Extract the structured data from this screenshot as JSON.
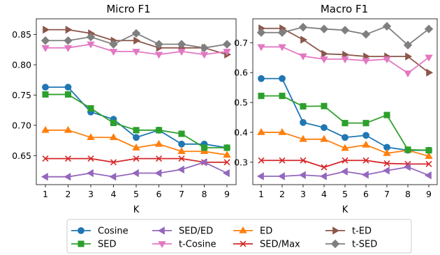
{
  "colors": {
    "Cosine": "#1f77b4",
    "ED": "#ff7f0e",
    "SED": "#2ca02c",
    "SED/Max": "#d62728",
    "SED/ED": "#9467bd",
    "t-ED": "#8c564b",
    "t-Cosine": "#e377c2",
    "t-SED": "#7f7f7f"
  },
  "markers": {
    "Cosine": "circle",
    "ED": "triangle-up",
    "SED": "square",
    "SED/Max": "x",
    "SED/ED": "triangle-left",
    "t-ED": "triangle-right",
    "t-Cosine": "triangle-down",
    "t-SED": "diamond"
  },
  "legend": {
    "placement": "bottom-center",
    "entries": [
      "Cosine",
      "SED",
      "SED/ED",
      "t-Cosine",
      "ED",
      "SED/Max",
      "t-ED",
      "t-SED"
    ]
  },
  "chart_data": [
    {
      "type": "line",
      "title": "Micro F1",
      "xlabel": "K",
      "ylabel": "",
      "x": [
        1,
        2,
        3,
        4,
        5,
        6,
        7,
        8,
        9
      ],
      "xlim": [
        0.6,
        9.4
      ],
      "ylim": [
        0.602,
        0.876
      ],
      "yticks": [
        "0.65",
        "0.70",
        "0.75",
        "0.80",
        "0.85"
      ],
      "ytick_values": [
        0.65,
        0.7,
        0.75,
        0.8,
        0.85
      ],
      "xticks": [
        "1",
        "2",
        "3",
        "4",
        "5",
        "6",
        "7",
        "8",
        "9"
      ],
      "grid": false,
      "series": [
        {
          "name": "Cosine",
          "values": [
            0.763,
            0.763,
            0.722,
            0.71,
            0.68,
            0.692,
            0.669,
            0.669,
            0.663
          ]
        },
        {
          "name": "ED",
          "values": [
            0.692,
            0.692,
            0.68,
            0.68,
            0.663,
            0.669,
            0.657,
            0.657,
            0.651
          ]
        },
        {
          "name": "SED",
          "values": [
            0.751,
            0.751,
            0.728,
            0.704,
            0.692,
            0.692,
            0.686,
            0.663,
            0.663
          ]
        },
        {
          "name": "SED/Max",
          "values": [
            0.645,
            0.645,
            0.645,
            0.639,
            0.645,
            0.645,
            0.645,
            0.639,
            0.639
          ]
        },
        {
          "name": "SED/ED",
          "values": [
            0.615,
            0.615,
            0.621,
            0.615,
            0.621,
            0.621,
            0.627,
            0.639,
            0.621
          ]
        },
        {
          "name": "t-ED",
          "values": [
            0.858,
            0.858,
            0.852,
            0.84,
            0.84,
            0.828,
            0.828,
            0.828,
            0.817
          ]
        },
        {
          "name": "t-Cosine",
          "values": [
            0.828,
            0.828,
            0.834,
            0.822,
            0.822,
            0.817,
            0.822,
            0.817,
            0.822
          ]
        },
        {
          "name": "t-SED",
          "values": [
            0.84,
            0.84,
            0.846,
            0.834,
            0.852,
            0.834,
            0.834,
            0.828,
            0.834
          ]
        }
      ]
    },
    {
      "type": "line",
      "title": "Macro F1",
      "xlabel": "K",
      "ylabel": "",
      "x": [
        1,
        2,
        3,
        4,
        5,
        6,
        7,
        8,
        9
      ],
      "xlim": [
        0.6,
        9.4
      ],
      "ylim": [
        0.225,
        0.78
      ],
      "yticks": [
        "0.3",
        "0.4",
        "0.5",
        "0.6",
        "0.7"
      ],
      "ytick_values": [
        0.3,
        0.4,
        0.5,
        0.6,
        0.7
      ],
      "xticks": [
        "1",
        "2",
        "3",
        "4",
        "5",
        "6",
        "7",
        "8",
        "9"
      ],
      "grid": false,
      "series": [
        {
          "name": "Cosine",
          "values": [
            0.58,
            0.58,
            0.433,
            0.416,
            0.383,
            0.39,
            0.35,
            0.34,
            0.34
          ]
        },
        {
          "name": "ED",
          "values": [
            0.4,
            0.4,
            0.377,
            0.377,
            0.347,
            0.358,
            0.33,
            0.34,
            0.32
          ]
        },
        {
          "name": "SED",
          "values": [
            0.522,
            0.522,
            0.487,
            0.488,
            0.431,
            0.431,
            0.458,
            0.342,
            0.34
          ]
        },
        {
          "name": "SED/Max",
          "values": [
            0.306,
            0.306,
            0.306,
            0.283,
            0.306,
            0.306,
            0.296,
            0.294,
            0.294
          ]
        },
        {
          "name": "SED/ED",
          "values": [
            0.253,
            0.253,
            0.257,
            0.253,
            0.269,
            0.258,
            0.272,
            0.284,
            0.256
          ]
        },
        {
          "name": "t-ED",
          "values": [
            0.748,
            0.748,
            0.71,
            0.663,
            0.66,
            0.654,
            0.654,
            0.654,
            0.6
          ]
        },
        {
          "name": "t-Cosine",
          "values": [
            0.686,
            0.686,
            0.655,
            0.645,
            0.645,
            0.64,
            0.645,
            0.598,
            0.651
          ]
        },
        {
          "name": "t-SED",
          "values": [
            0.734,
            0.734,
            0.752,
            0.746,
            0.742,
            0.728,
            0.755,
            0.692,
            0.746
          ]
        }
      ]
    }
  ]
}
